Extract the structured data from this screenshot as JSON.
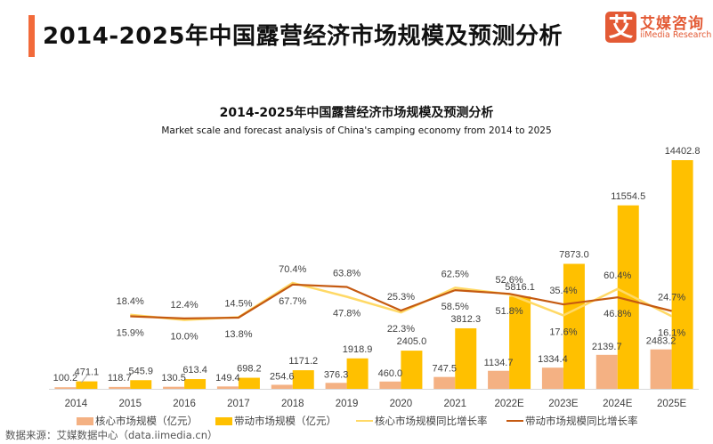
{
  "header": {
    "title": "2014-2025年中国露营经济市场规模及预测分析",
    "logo": {
      "mark": "艾",
      "name_cn": "艾媒咨询",
      "name_en": "iiMedia Research"
    }
  },
  "colors": {
    "accent": "#f26a3a",
    "core_bar": "#f4b183",
    "driven_bar": "#ffc000",
    "core_line": "#ffd966",
    "driven_line": "#c55a11",
    "axis": "#d9d9d9",
    "label": "#404040"
  },
  "chart_data": {
    "type": "bar",
    "title": "2014-2025年中国露营经济市场规模及预测分析",
    "subtitle": "Market scale and forecast analysis of China's camping economy from 2014 to 2025",
    "xlabel": "",
    "ylabel": "",
    "categories": [
      "2014",
      "2015",
      "2016",
      "2017",
      "2018",
      "2019",
      "2020",
      "2021",
      "2022E",
      "2023E",
      "2024E",
      "2025E"
    ],
    "series": [
      {
        "name": "核心市场规模（亿元）",
        "type": "bar",
        "axis": "primary",
        "values": [
          100.2,
          118.7,
          130.5,
          149.4,
          254.6,
          376.3,
          460.0,
          747.5,
          1134.7,
          1334.4,
          2139.7,
          2483.2
        ],
        "labels": [
          "100.2",
          "118.7",
          "130.5",
          "149.4",
          "254.6",
          "376.3",
          "460.0",
          "747.5",
          "1134.7",
          "1334.4",
          "2139.7",
          "2483.2"
        ]
      },
      {
        "name": "带动市场规模（亿元）",
        "type": "bar",
        "axis": "primary",
        "values": [
          471.1,
          545.9,
          613.4,
          698.2,
          1171.2,
          1918.9,
          2405.0,
          3812.3,
          5816.1,
          7873.0,
          11554.5,
          14402.8
        ],
        "labels": [
          "471.1",
          "545.9",
          "613.4",
          "698.2",
          "1171.2",
          "1918.9",
          "2405.0",
          "3812.3",
          "5816.1",
          "7873.0",
          "11554.5",
          "14402.8"
        ]
      },
      {
        "name": "核心市场规模同比增长率",
        "type": "line",
        "axis": "secondary",
        "values": [
          null,
          18.4,
          10.0,
          14.5,
          70.4,
          47.8,
          22.3,
          62.5,
          51.8,
          17.6,
          60.4,
          16.1
        ],
        "labels": [
          "",
          "18.4%",
          "10.0%",
          "14.5%",
          "70.4%",
          "47.8%",
          "22.3%",
          "62.5%",
          "51.8%",
          "17.6%",
          "60.4%",
          "16.1%"
        ]
      },
      {
        "name": "带动市场规模同比增长率",
        "type": "line",
        "axis": "secondary",
        "values": [
          null,
          15.9,
          12.4,
          13.8,
          67.7,
          63.8,
          25.3,
          58.5,
          52.6,
          35.4,
          46.8,
          24.7
        ],
        "labels": [
          "",
          "15.9%",
          "12.4%",
          "13.8%",
          "67.7%",
          "63.8%",
          "25.3%",
          "58.5%",
          "52.6%",
          "35.4%",
          "46.8%",
          "24.7%"
        ]
      }
    ],
    "ylim": [
      0,
      14500
    ],
    "y2lim": [
      -100,
      100
    ],
    "grid": false,
    "legend_position": "bottom"
  },
  "footer": {
    "source": "数据来源：艾媒数据中心（data.iimedia.cn）"
  }
}
